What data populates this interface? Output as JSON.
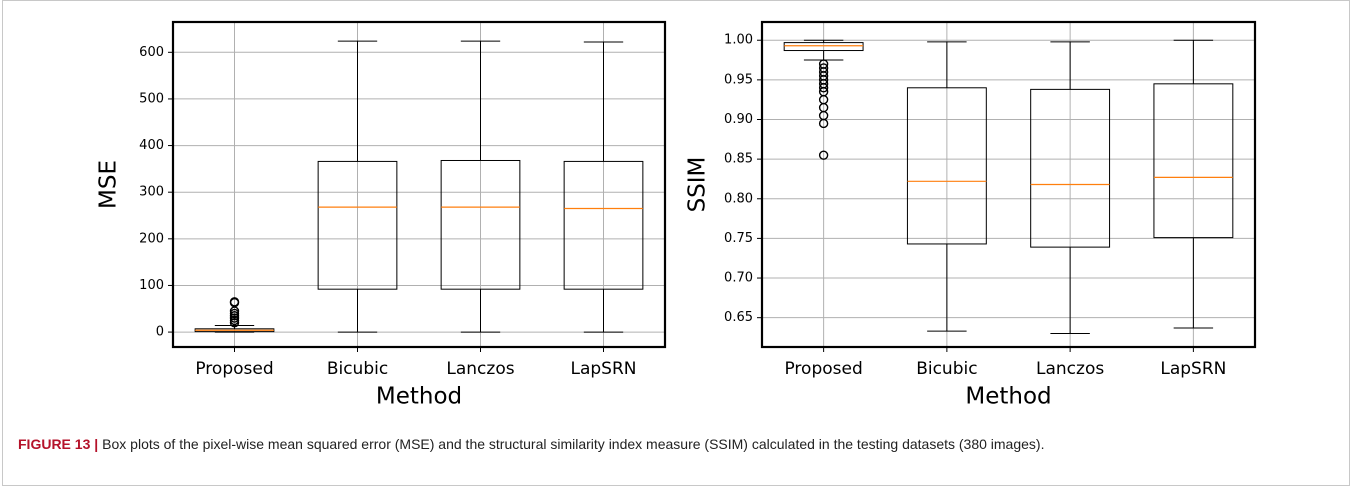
{
  "chart_data": [
    {
      "type": "box",
      "ylabel": "MSE",
      "xlabel": "Method",
      "categories": [
        "Proposed",
        "Bicubic",
        "Lanczos",
        "LapSRN"
      ],
      "boxes": [
        {
          "whislo": 0,
          "q1": 1,
          "med": 4,
          "q3": 7,
          "whishi": 14,
          "fliers": [
            20,
            25,
            30,
            35,
            40,
            45,
            63,
            65
          ]
        },
        {
          "whislo": 0,
          "q1": 92,
          "med": 268,
          "q3": 366,
          "whishi": 624,
          "fliers": []
        },
        {
          "whislo": 0,
          "q1": 92,
          "med": 268,
          "q3": 368,
          "whishi": 624,
          "fliers": []
        },
        {
          "whislo": 0,
          "q1": 92,
          "med": 265,
          "q3": 366,
          "whishi": 622,
          "fliers": []
        }
      ],
      "color": "#000000",
      "median_color": "#ff7f0e",
      "ylim": [
        -32,
        665
      ],
      "yticks": [
        0,
        100,
        200,
        300,
        400,
        500,
        600
      ],
      "grid": true
    },
    {
      "type": "box",
      "ylabel": "SSIM",
      "xlabel": "Method",
      "categories": [
        "Proposed",
        "Bicubic",
        "Lanczos",
        "LapSRN"
      ],
      "boxes": [
        {
          "whislo": 0.975,
          "q1": 0.987,
          "med": 0.993,
          "q3": 0.997,
          "whishi": 1.0,
          "fliers": [
            0.855,
            0.895,
            0.905,
            0.915,
            0.925,
            0.935,
            0.94,
            0.945,
            0.95,
            0.955,
            0.96,
            0.965,
            0.97
          ]
        },
        {
          "whislo": 0.633,
          "q1": 0.743,
          "med": 0.822,
          "q3": 0.94,
          "whishi": 0.998,
          "fliers": []
        },
        {
          "whislo": 0.63,
          "q1": 0.739,
          "med": 0.818,
          "q3": 0.938,
          "whishi": 0.998,
          "fliers": []
        },
        {
          "whislo": 0.637,
          "q1": 0.751,
          "med": 0.827,
          "q3": 0.945,
          "whishi": 1.0,
          "fliers": []
        }
      ],
      "color": "#000000",
      "median_color": "#ff7f0e",
      "ylim": [
        0.613,
        1.023
      ],
      "yticks": [
        0.65,
        {
          "value": 0.7,
          "label": "0.70"
        },
        0.75,
        {
          "value": 0.8,
          "label": "0.80"
        },
        0.85,
        {
          "value": 0.9,
          "label": "0.90"
        },
        0.95,
        {
          "value": 1.0,
          "label": "1.00"
        }
      ],
      "grid": true
    }
  ],
  "caption": {
    "label": "FIGURE 13 |",
    "text": "Box plots of the pixel-wise mean squared error (MSE) and the structural similarity index measure (SSIM) calculated in the testing datasets (380 images)."
  }
}
